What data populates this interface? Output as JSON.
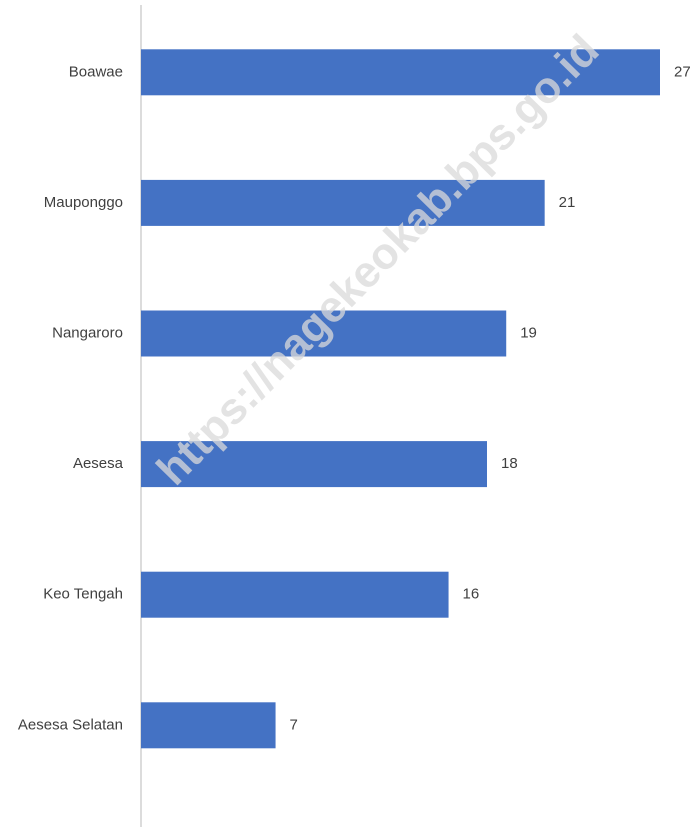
{
  "chart_data": {
    "type": "bar",
    "orientation": "horizontal",
    "categories": [
      "Boawae",
      "Mauponggo",
      "Nangaroro",
      "Aesesa",
      "Keo Tengah",
      "Aesesa Selatan"
    ],
    "values": [
      27,
      21,
      19,
      18,
      16,
      7
    ],
    "color": "#4472c4",
    "watermark": "https://nagekeokab.bps.go.id"
  }
}
